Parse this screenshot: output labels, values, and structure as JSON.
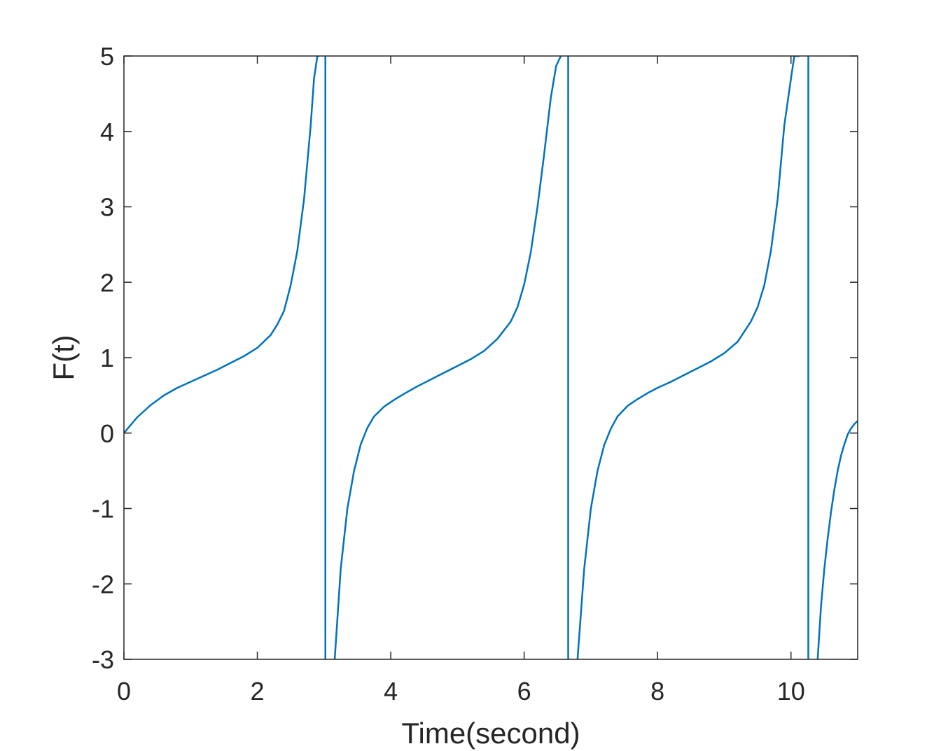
{
  "chart_data": {
    "type": "line",
    "title": "",
    "xlabel": "Time(second)",
    "ylabel": "F(t)",
    "xlim": [
      0,
      11
    ],
    "ylim": [
      -3,
      5
    ],
    "xticks": [
      0,
      2,
      4,
      6,
      8,
      10
    ],
    "yticks": [
      -3,
      -2,
      -1,
      0,
      1,
      2,
      3,
      4,
      5
    ],
    "xtick_labels": [
      "0",
      "2",
      "4",
      "6",
      "8",
      "10"
    ],
    "ytick_labels": [
      "-3",
      "-2",
      "-1",
      "0",
      "1",
      "2",
      "3",
      "4",
      "5"
    ],
    "grid": false,
    "legend": "none",
    "line_color": "#0072BD",
    "series": [
      {
        "segments": [
          {
            "x": [
              0,
              0.2,
              0.4,
              0.6,
              0.8,
              1.0,
              1.2,
              1.4,
              1.6,
              1.8,
              2.0,
              2.2,
              2.3,
              2.4,
              2.5,
              2.6,
              2.7,
              2.8,
              2.85,
              2.9,
              2.93
            ],
            "y": [
              0,
              0.21,
              0.37,
              0.5,
              0.6,
              0.68,
              0.76,
              0.84,
              0.93,
              1.02,
              1.13,
              1.3,
              1.44,
              1.62,
              1.96,
              2.42,
              3.1,
              4.08,
              4.7,
              5.0,
              5.0
            ]
          },
          {
            "x": [
              3.02,
              3.02
            ],
            "y": [
              5.0,
              -3.0
            ]
          },
          {
            "x": [
              3.16,
              3.25,
              3.35,
              3.45,
              3.55,
              3.65,
              3.75,
              3.9,
              4.05,
              4.2,
              4.4,
              4.6,
              4.8,
              5.0,
              5.2,
              5.4,
              5.6,
              5.8,
              5.9,
              6.0,
              6.1,
              6.2,
              6.3,
              6.4,
              6.48,
              6.55
            ],
            "y": [
              -3.0,
              -1.8,
              -1.0,
              -0.5,
              -0.15,
              0.07,
              0.22,
              0.35,
              0.44,
              0.52,
              0.62,
              0.71,
              0.8,
              0.89,
              0.98,
              1.09,
              1.25,
              1.48,
              1.67,
              1.97,
              2.4,
              3.0,
              3.7,
              4.45,
              4.87,
              5.0
            ]
          },
          {
            "x": [
              6.66,
              6.66
            ],
            "y": [
              5.0,
              -3.0
            ]
          },
          {
            "x": [
              6.8,
              6.9,
              7.0,
              7.1,
              7.2,
              7.3,
              7.4,
              7.55,
              7.7,
              7.85,
              8.0,
              8.2,
              8.4,
              8.6,
              8.8,
              9.0,
              9.2,
              9.4,
              9.5,
              9.6,
              9.7,
              9.8,
              9.9,
              10.0,
              10.05,
              10.1,
              10.13
            ],
            "y": [
              -3.0,
              -1.8,
              -1.0,
              -0.5,
              -0.16,
              0.06,
              0.22,
              0.36,
              0.45,
              0.53,
              0.6,
              0.68,
              0.77,
              0.86,
              0.95,
              1.06,
              1.21,
              1.48,
              1.67,
              1.96,
              2.42,
              3.1,
              4.08,
              4.7,
              5.0,
              5.0,
              5.0
            ]
          },
          {
            "x": [
              10.26,
              10.26
            ],
            "y": [
              5.0,
              -3.0
            ]
          },
          {
            "x": [
              10.4,
              10.45,
              10.5,
              10.55,
              10.6,
              10.65,
              10.7,
              10.75,
              10.8,
              10.85,
              10.9,
              10.95,
              11.0
            ],
            "y": [
              -3.0,
              -2.3,
              -1.8,
              -1.4,
              -1.05,
              -0.75,
              -0.5,
              -0.3,
              -0.15,
              -0.02,
              0.06,
              0.12,
              0.16
            ]
          }
        ]
      }
    ]
  }
}
